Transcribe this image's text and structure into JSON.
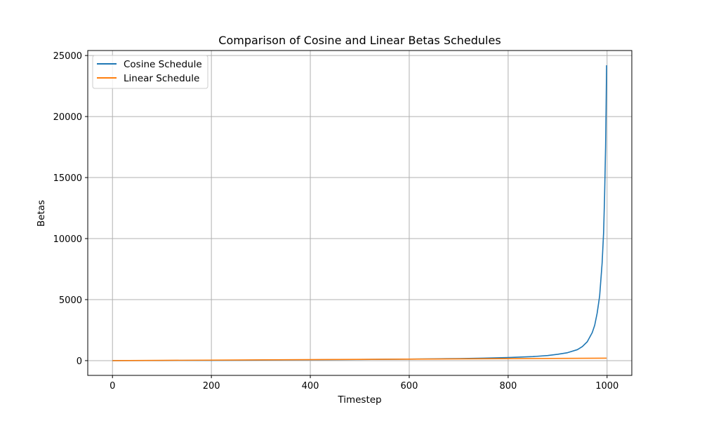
{
  "chart_data": {
    "type": "line",
    "title": "Comparison of Cosine and Linear Betas Schedules",
    "xlabel": "Timestep",
    "ylabel": "Betas",
    "xlim": [
      -50,
      1050
    ],
    "ylim": [
      -1210,
      25410
    ],
    "x_ticks": [
      0,
      200,
      400,
      600,
      800,
      1000
    ],
    "y_ticks": [
      0,
      5000,
      10000,
      15000,
      20000,
      25000
    ],
    "grid": true,
    "legend_position": "top-left",
    "series": [
      {
        "name": "Cosine Schedule",
        "color": "#1f77b4",
        "x": [
          0,
          100,
          200,
          300,
          400,
          500,
          600,
          650,
          700,
          750,
          800,
          850,
          880,
          900,
          920,
          940,
          950,
          960,
          970,
          975,
          980,
          985,
          990,
          993,
          995,
          997,
          998,
          999
        ],
        "y": [
          0,
          10,
          25,
          45,
          70,
          95,
          125,
          145,
          170,
          200,
          250,
          330,
          420,
          520,
          650,
          900,
          1150,
          1550,
          2300,
          2900,
          3900,
          5300,
          8000,
          10500,
          13500,
          17500,
          20500,
          24200
        ]
      },
      {
        "name": "Linear Schedule",
        "color": "#ff7f0e",
        "x": [
          0,
          999
        ],
        "y": [
          0,
          200
        ]
      }
    ]
  }
}
